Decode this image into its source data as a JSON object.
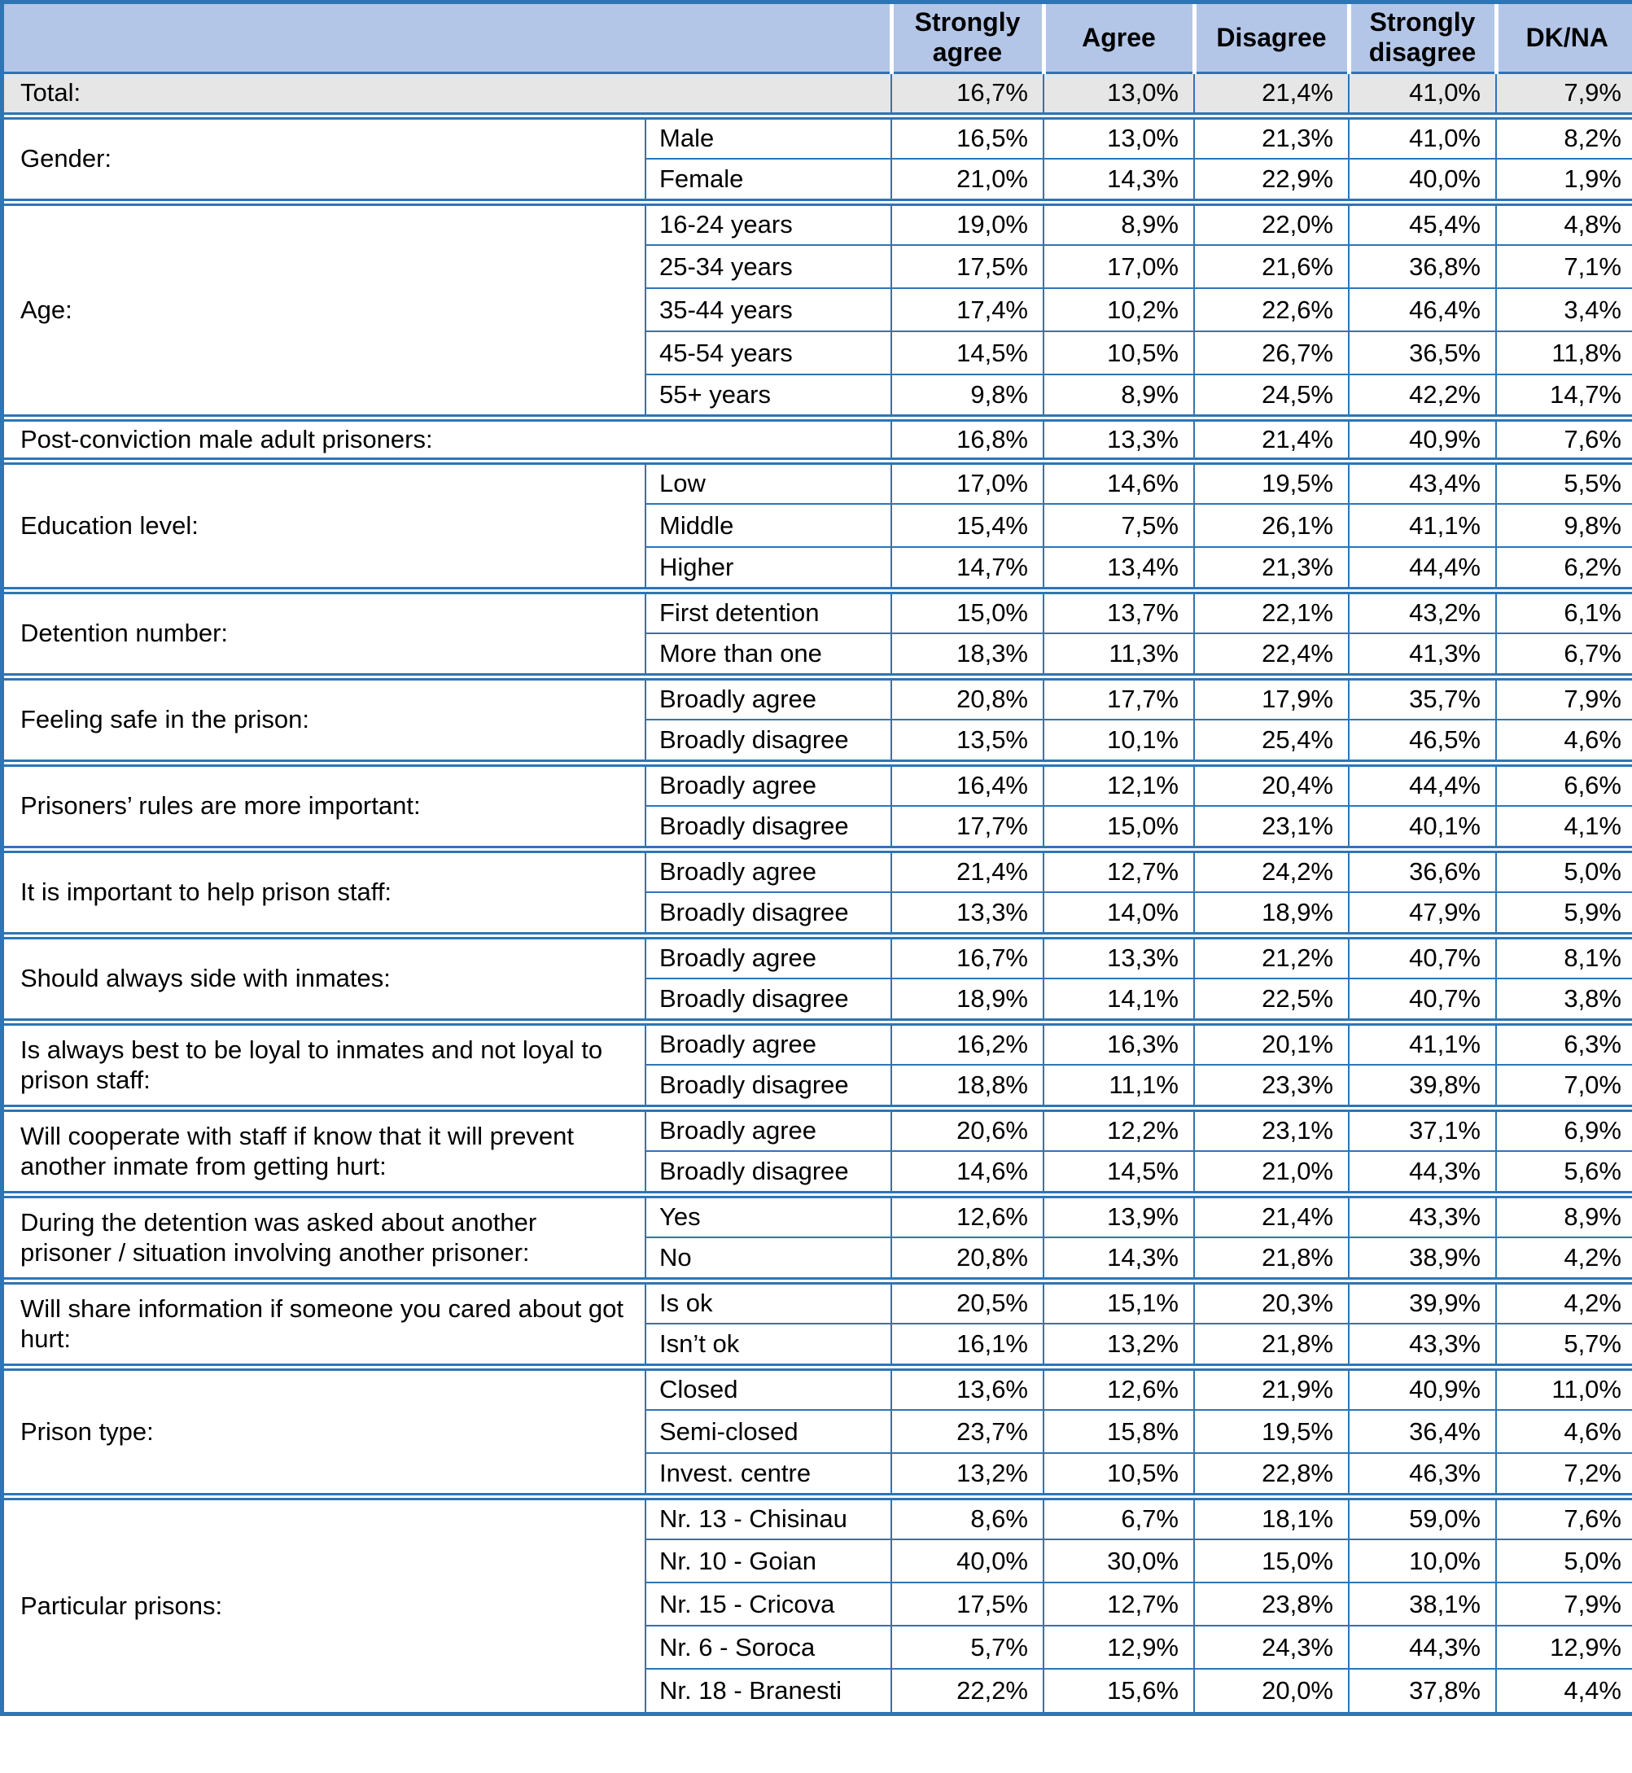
{
  "colors": {
    "border_blue": "#2e75b6",
    "header_bg": "#b4c6e7",
    "total_row_bg": "#e7e6e6"
  },
  "table": {
    "corner_label": "",
    "column_headers": [
      "Strongly agree",
      "Agree",
      "Disagree",
      "Strongly disagree",
      "DK/NA"
    ],
    "groups": [
      {
        "label": "Total:",
        "total": true,
        "rows": [
          {
            "sub": null,
            "values": [
              "16,7%",
              "13,0%",
              "21,4%",
              "41,0%",
              "7,9%"
            ]
          }
        ]
      },
      {
        "label": "Gender:",
        "rows": [
          {
            "sub": "Male",
            "values": [
              "16,5%",
              "13,0%",
              "21,3%",
              "41,0%",
              "8,2%"
            ]
          },
          {
            "sub": "Female",
            "values": [
              "21,0%",
              "14,3%",
              "22,9%",
              "40,0%",
              "1,9%"
            ]
          }
        ]
      },
      {
        "label": "Age:",
        "rows": [
          {
            "sub": "16-24 years",
            "values": [
              "19,0%",
              "8,9%",
              "22,0%",
              "45,4%",
              "4,8%"
            ]
          },
          {
            "sub": "25-34 years",
            "values": [
              "17,5%",
              "17,0%",
              "21,6%",
              "36,8%",
              "7,1%"
            ]
          },
          {
            "sub": "35-44 years",
            "values": [
              "17,4%",
              "10,2%",
              "22,6%",
              "46,4%",
              "3,4%"
            ]
          },
          {
            "sub": "45-54 years",
            "values": [
              "14,5%",
              "10,5%",
              "26,7%",
              "36,5%",
              "11,8%"
            ]
          },
          {
            "sub": "55+ years",
            "values": [
              "9,8%",
              "8,9%",
              "24,5%",
              "42,2%",
              "14,7%"
            ]
          }
        ]
      },
      {
        "label": "Post-conviction male adult prisoners:",
        "rows": [
          {
            "sub": null,
            "values": [
              "16,8%",
              "13,3%",
              "21,4%",
              "40,9%",
              "7,6%"
            ]
          }
        ]
      },
      {
        "label": "Education level:",
        "rows": [
          {
            "sub": "Low",
            "values": [
              "17,0%",
              "14,6%",
              "19,5%",
              "43,4%",
              "5,5%"
            ]
          },
          {
            "sub": "Middle",
            "values": [
              "15,4%",
              "7,5%",
              "26,1%",
              "41,1%",
              "9,8%"
            ]
          },
          {
            "sub": "Higher",
            "values": [
              "14,7%",
              "13,4%",
              "21,3%",
              "44,4%",
              "6,2%"
            ]
          }
        ]
      },
      {
        "label": "Detention number:",
        "rows": [
          {
            "sub": "First detention",
            "values": [
              "15,0%",
              "13,7%",
              "22,1%",
              "43,2%",
              "6,1%"
            ]
          },
          {
            "sub": "More than one",
            "values": [
              "18,3%",
              "11,3%",
              "22,4%",
              "41,3%",
              "6,7%"
            ]
          }
        ]
      },
      {
        "label": "Feeling safe in the prison:",
        "rows": [
          {
            "sub": "Broadly agree",
            "values": [
              "20,8%",
              "17,7%",
              "17,9%",
              "35,7%",
              "7,9%"
            ]
          },
          {
            "sub": "Broadly disagree",
            "values": [
              "13,5%",
              "10,1%",
              "25,4%",
              "46,5%",
              "4,6%"
            ]
          }
        ]
      },
      {
        "label": "Prisoners’ rules are more important:",
        "rows": [
          {
            "sub": "Broadly agree",
            "values": [
              "16,4%",
              "12,1%",
              "20,4%",
              "44,4%",
              "6,6%"
            ]
          },
          {
            "sub": "Broadly disagree",
            "values": [
              "17,7%",
              "15,0%",
              "23,1%",
              "40,1%",
              "4,1%"
            ]
          }
        ]
      },
      {
        "label": "It is important to help prison staff:",
        "rows": [
          {
            "sub": "Broadly agree",
            "values": [
              "21,4%",
              "12,7%",
              "24,2%",
              "36,6%",
              "5,0%"
            ]
          },
          {
            "sub": "Broadly disagree",
            "values": [
              "13,3%",
              "14,0%",
              "18,9%",
              "47,9%",
              "5,9%"
            ]
          }
        ]
      },
      {
        "label": "Should always side with inmates:",
        "rows": [
          {
            "sub": "Broadly agree",
            "values": [
              "16,7%",
              "13,3%",
              "21,2%",
              "40,7%",
              "8,1%"
            ]
          },
          {
            "sub": "Broadly disagree",
            "values": [
              "18,9%",
              "14,1%",
              "22,5%",
              "40,7%",
              "3,8%"
            ]
          }
        ]
      },
      {
        "label": "Is always best to be loyal to inmates and not loyal to prison staff:",
        "rows": [
          {
            "sub": "Broadly agree",
            "values": [
              "16,2%",
              "16,3%",
              "20,1%",
              "41,1%",
              "6,3%"
            ]
          },
          {
            "sub": "Broadly disagree",
            "values": [
              "18,8%",
              "11,1%",
              "23,3%",
              "39,8%",
              "7,0%"
            ]
          }
        ]
      },
      {
        "label": "Will cooperate with staff if know that it will prevent another inmate from getting hurt:",
        "rows": [
          {
            "sub": "Broadly agree",
            "values": [
              "20,6%",
              "12,2%",
              "23,1%",
              "37,1%",
              "6,9%"
            ]
          },
          {
            "sub": "Broadly disagree",
            "values": [
              "14,6%",
              "14,5%",
              "21,0%",
              "44,3%",
              "5,6%"
            ]
          }
        ]
      },
      {
        "label": "During the detention was asked about another prisoner / situation involving another prisoner:",
        "rows": [
          {
            "sub": "Yes",
            "values": [
              "12,6%",
              "13,9%",
              "21,4%",
              "43,3%",
              "8,9%"
            ]
          },
          {
            "sub": "No",
            "values": [
              "20,8%",
              "14,3%",
              "21,8%",
              "38,9%",
              "4,2%"
            ]
          }
        ]
      },
      {
        "label": "Will share information if someone you cared about got hurt:",
        "rows": [
          {
            "sub": "Is ok",
            "values": [
              "20,5%",
              "15,1%",
              "20,3%",
              "39,9%",
              "4,2%"
            ]
          },
          {
            "sub": "Isn’t ok",
            "values": [
              "16,1%",
              "13,2%",
              "21,8%",
              "43,3%",
              "5,7%"
            ]
          }
        ]
      },
      {
        "label": "Prison type:",
        "rows": [
          {
            "sub": "Closed",
            "values": [
              "13,6%",
              "12,6%",
              "21,9%",
              "40,9%",
              "11,0%"
            ]
          },
          {
            "sub": "Semi-closed",
            "values": [
              "23,7%",
              "15,8%",
              "19,5%",
              "36,4%",
              "4,6%"
            ]
          },
          {
            "sub": "Invest. centre",
            "values": [
              "13,2%",
              "10,5%",
              "22,8%",
              "46,3%",
              "7,2%"
            ]
          }
        ]
      },
      {
        "label": "Particular prisons:",
        "rows": [
          {
            "sub": "Nr. 13 - Chisinau",
            "values": [
              "8,6%",
              "6,7%",
              "18,1%",
              "59,0%",
              "7,6%"
            ]
          },
          {
            "sub": "Nr. 10 - Goian",
            "values": [
              "40,0%",
              "30,0%",
              "15,0%",
              "10,0%",
              "5,0%"
            ]
          },
          {
            "sub": "Nr. 15 - Cricova",
            "values": [
              "17,5%",
              "12,7%",
              "23,8%",
              "38,1%",
              "7,9%"
            ]
          },
          {
            "sub": "Nr. 6 - Soroca",
            "values": [
              "5,7%",
              "12,9%",
              "24,3%",
              "44,3%",
              "12,9%"
            ]
          },
          {
            "sub": "Nr. 18 - Branesti",
            "values": [
              "22,2%",
              "15,6%",
              "20,0%",
              "37,8%",
              "4,4%"
            ]
          }
        ]
      }
    ]
  }
}
